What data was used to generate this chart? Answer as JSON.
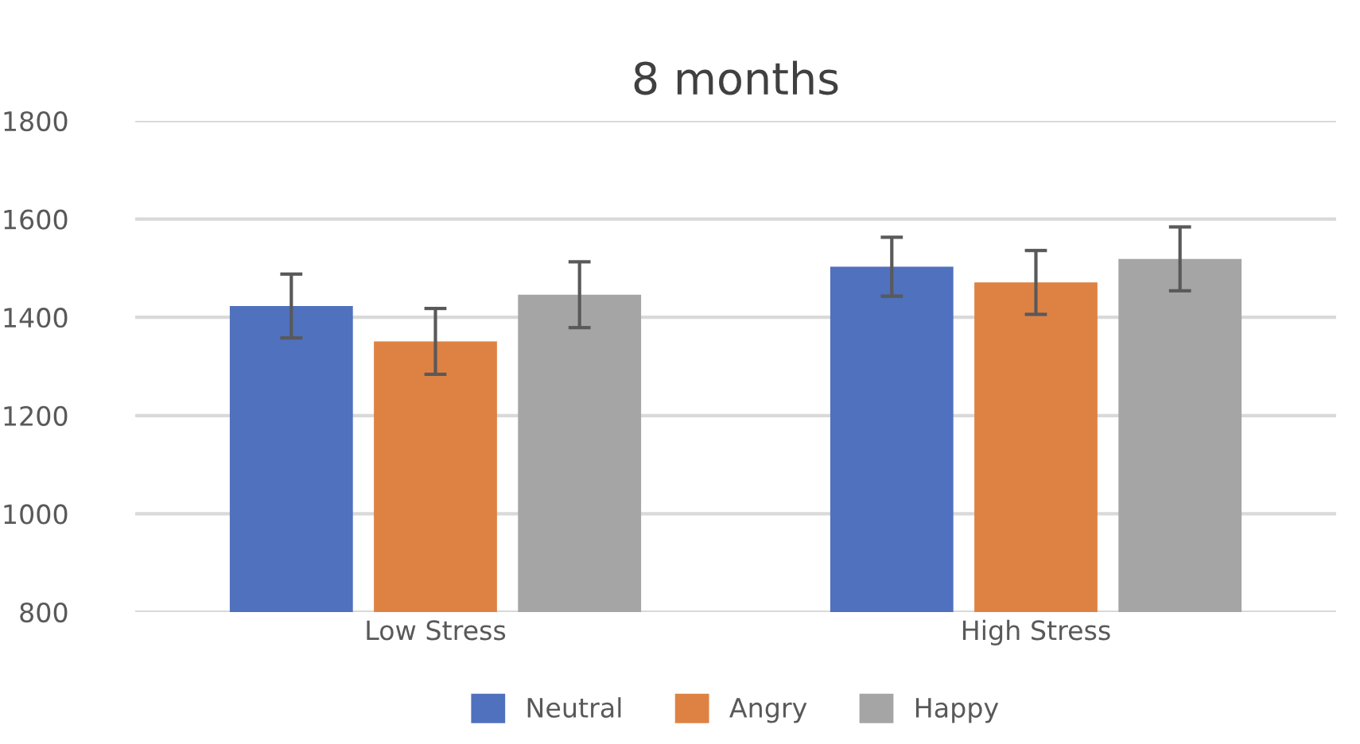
{
  "chart_data": {
    "type": "bar",
    "title": "8 months",
    "categories": [
      "Low Stress",
      "High Stress"
    ],
    "series": [
      {
        "name": "Neutral",
        "color": "#4f71be",
        "values": [
          1423,
          1503
        ],
        "errors": [
          65,
          60
        ]
      },
      {
        "name": "Angry",
        "color": "#de8244",
        "values": [
          1351,
          1471
        ],
        "errors": [
          67,
          65
        ]
      },
      {
        "name": "Happy",
        "color": "#a5a5a5",
        "values": [
          1446,
          1519
        ],
        "errors": [
          67,
          65
        ]
      }
    ],
    "ylim": [
      800,
      1800
    ],
    "yticks": [
      800,
      1000,
      1200,
      1400,
      1600,
      1800
    ],
    "grid": "y",
    "legend": "bottom"
  }
}
